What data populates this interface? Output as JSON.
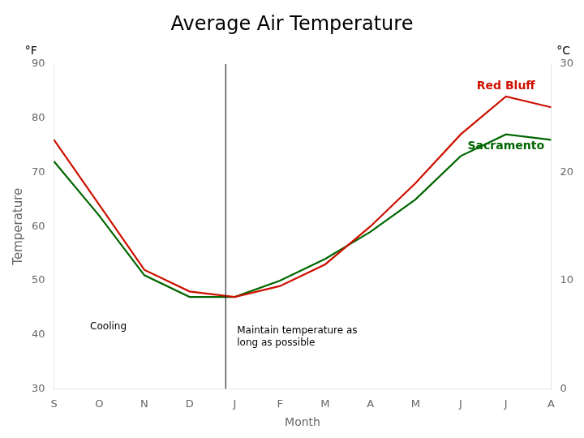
{
  "chart_data": {
    "type": "line",
    "title": "Average Air Temperature",
    "x_label": "Month",
    "y_label": "Temperature",
    "y_unit": "°F",
    "y2_unit": "°C",
    "categories": [
      "S",
      "O",
      "N",
      "D",
      "J",
      "F",
      "M",
      "A",
      "M",
      "J",
      "J",
      "A"
    ],
    "series": [
      {
        "name": "Red Bluff",
        "color": "#cc1100",
        "values": [
          76,
          64,
          52,
          48,
          47,
          49,
          53,
          60,
          68,
          77,
          84,
          82
        ]
      },
      {
        "name": "Sacramento",
        "color": "#006600",
        "values": [
          72,
          62,
          51,
          47,
          47,
          50,
          54,
          59,
          65,
          73,
          77,
          76
        ]
      }
    ],
    "ylim": [
      30,
      90
    ],
    "yticks": [
      30,
      40,
      50,
      60,
      70,
      80,
      90
    ],
    "y2lim": [
      0,
      30
    ],
    "y2ticks": [
      0,
      10,
      20,
      30
    ],
    "grid": false,
    "vlines": [
      3.8
    ],
    "annotations": [
      {
        "text": "Cooling",
        "x": 0.8,
        "y": 41
      },
      {
        "text": "Maintain temperature as\nlong as possible",
        "x": 4.05,
        "y": 38
      }
    ]
  }
}
